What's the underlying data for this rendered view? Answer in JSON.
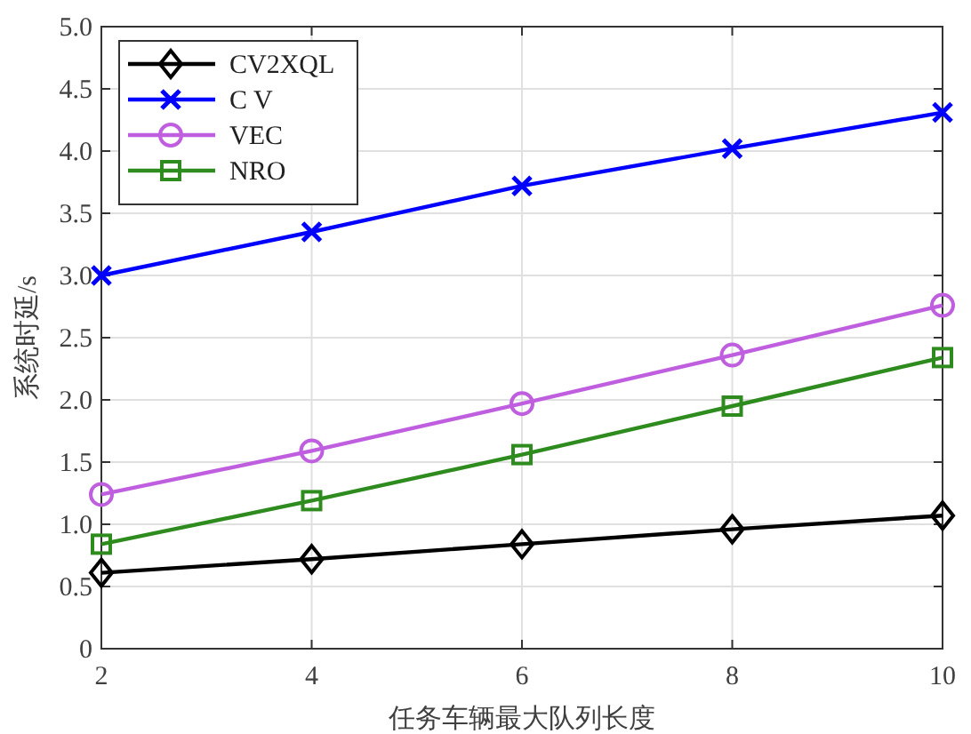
{
  "chart_data": {
    "type": "line",
    "xlabel": "任务车辆最大队列长度",
    "ylabel": "系统时延/s",
    "x": [
      2,
      4,
      6,
      8,
      10
    ],
    "series": [
      {
        "name": "CV2XQL",
        "color": "#000000",
        "marker": "diamond",
        "values": [
          0.61,
          0.72,
          0.84,
          0.96,
          1.07
        ]
      },
      {
        "name": "C V",
        "color": "#0000ff",
        "marker": "cross",
        "values": [
          3.0,
          3.35,
          3.72,
          4.02,
          4.31
        ]
      },
      {
        "name": "VEC",
        "color": "#bf5fdf",
        "marker": "circle",
        "values": [
          1.24,
          1.59,
          1.97,
          2.36,
          2.76
        ]
      },
      {
        "name": "NRO",
        "color": "#2e8b1e",
        "marker": "square",
        "values": [
          0.84,
          1.19,
          1.56,
          1.95,
          2.34
        ]
      }
    ],
    "xlim": [
      2,
      10
    ],
    "xticks": [
      2,
      4,
      6,
      8,
      10
    ],
    "ylim": [
      0,
      5
    ],
    "yticks": [
      0,
      0.5,
      {
        "value": 1,
        "label": "1.0"
      },
      1.5,
      {
        "value": 2,
        "label": "2.0"
      },
      2.5,
      {
        "value": 3,
        "label": "3.0"
      },
      3.5,
      {
        "value": 4,
        "label": "4.0"
      },
      4.5,
      {
        "value": 5,
        "label": "5.0"
      }
    ],
    "grid": true,
    "legend": "top left",
    "line_style": "solid"
  }
}
